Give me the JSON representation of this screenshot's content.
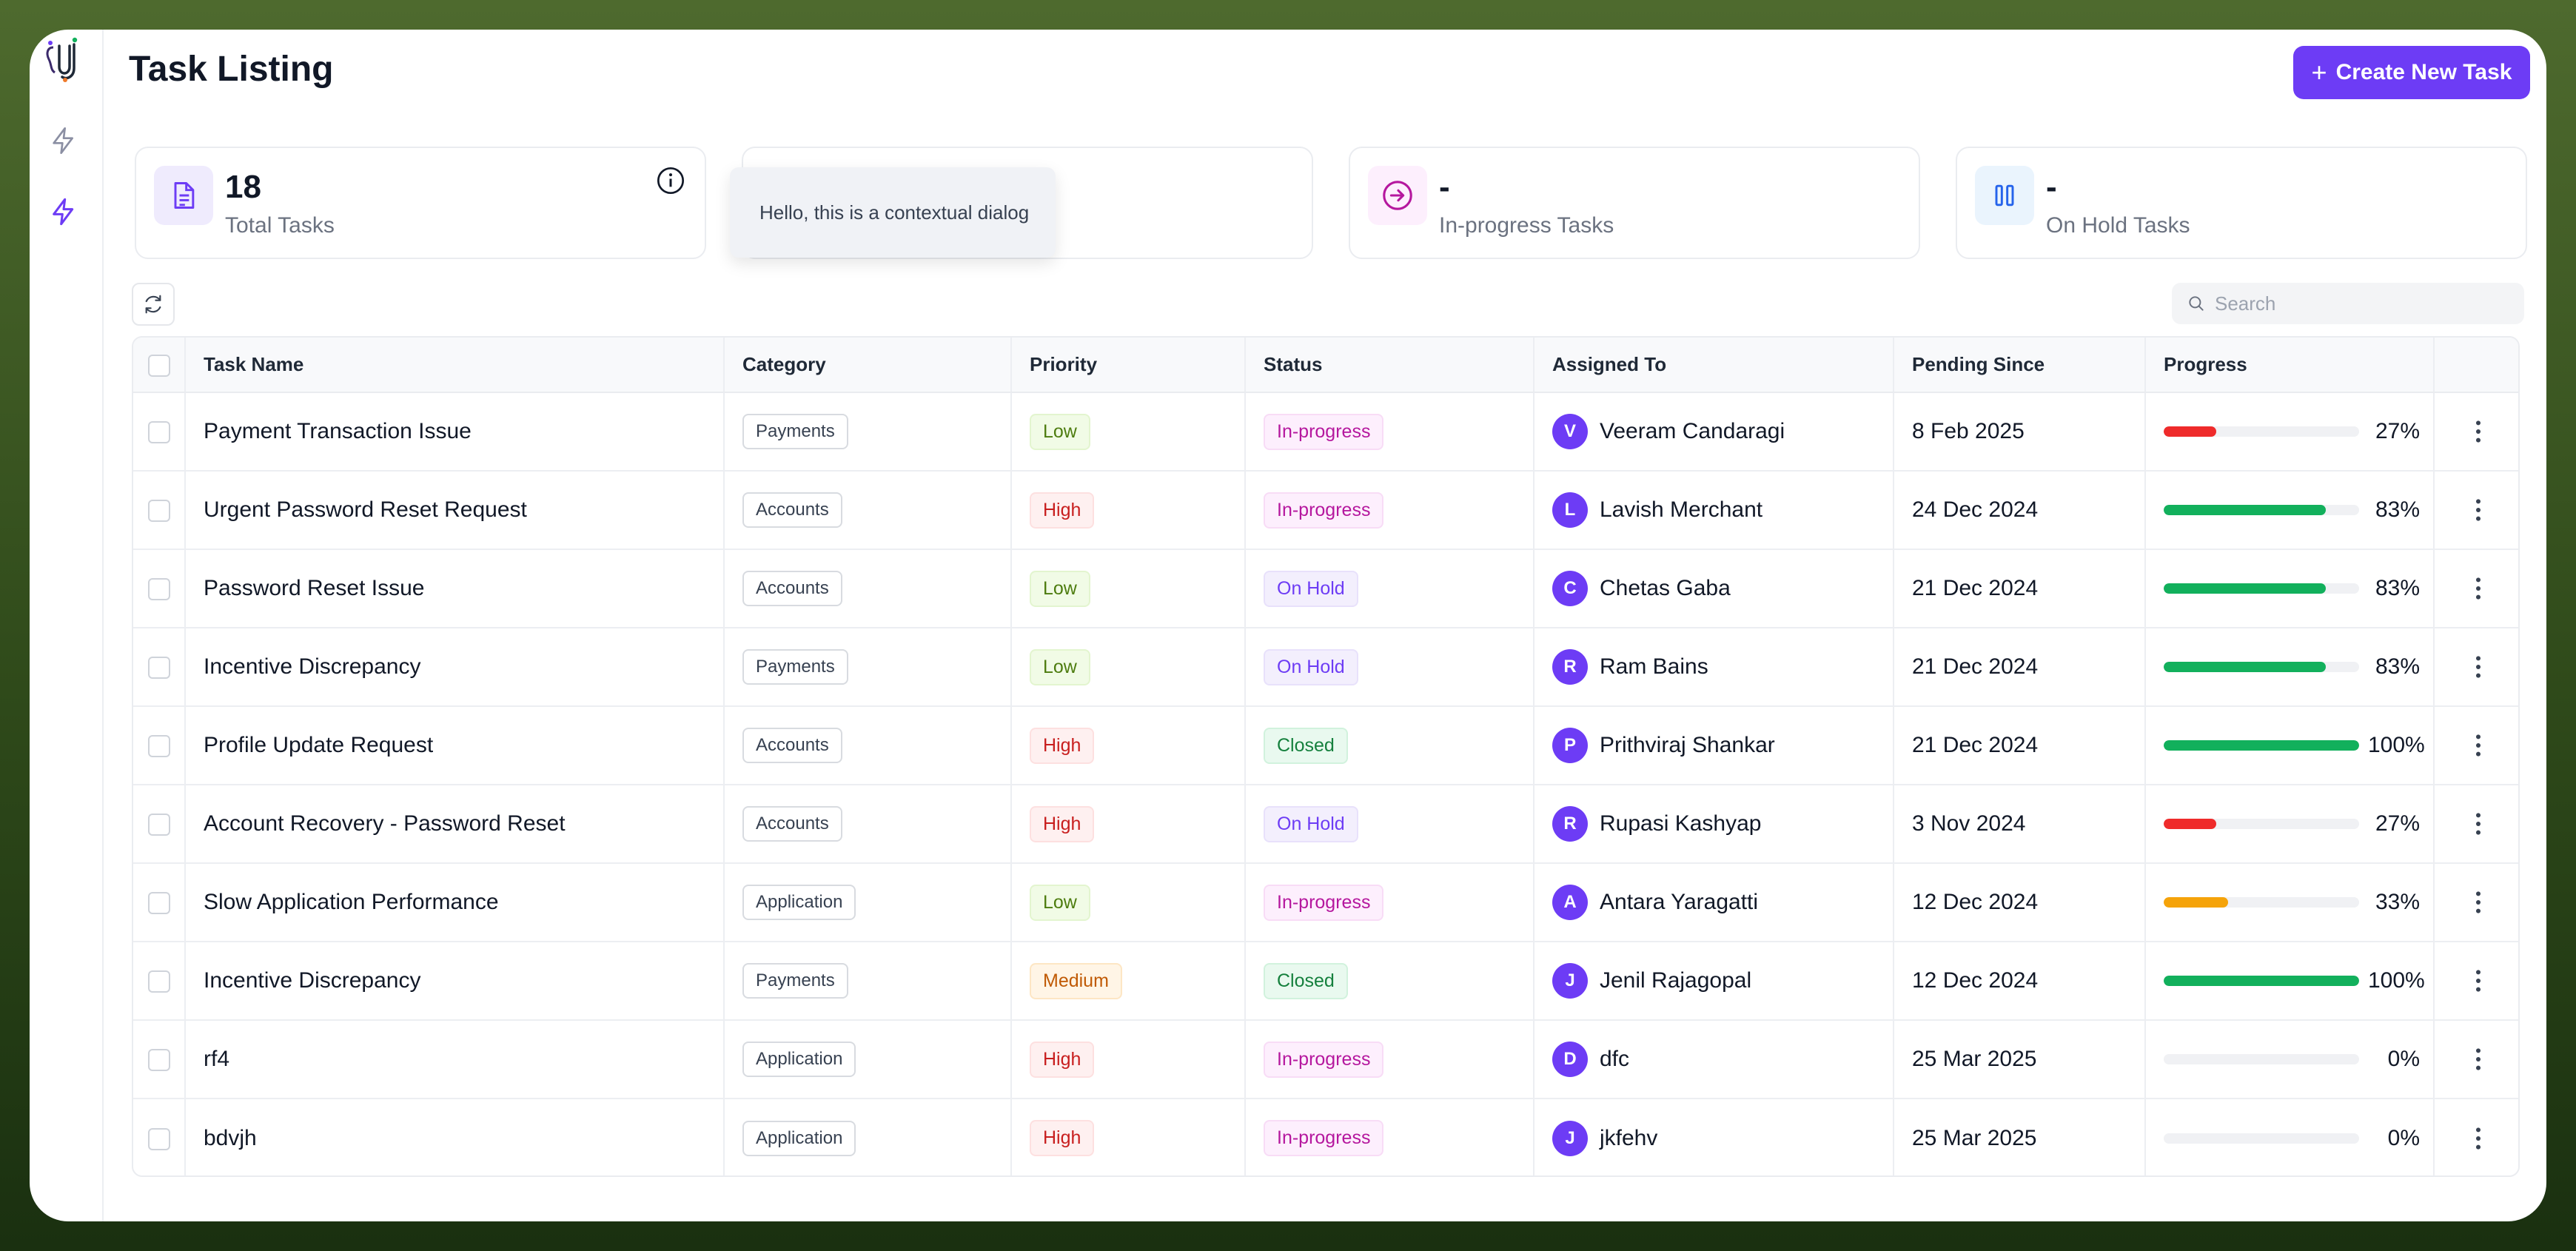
{
  "header": {
    "title": "Task Listing",
    "create_label": "Create New Task"
  },
  "sidebar": {
    "items": [
      {
        "icon": "lightning-icon",
        "active": false
      },
      {
        "icon": "lightning-icon",
        "active": true
      }
    ]
  },
  "stats": [
    {
      "value": "18",
      "label": "Total Tasks",
      "icon": "document-icon"
    },
    {
      "value": "",
      "label": "",
      "icon": ""
    },
    {
      "value": "-",
      "label": "In-progress Tasks",
      "icon": "arrow-right-circle-icon"
    },
    {
      "value": "-",
      "label": "On Hold Tasks",
      "icon": "pause-icon"
    }
  ],
  "tooltip": {
    "text": "Hello, this is a contextual dialog"
  },
  "search": {
    "placeholder": "Search",
    "value": ""
  },
  "table": {
    "columns": [
      "Task Name",
      "Category",
      "Priority",
      "Status",
      "Assigned To",
      "Pending Since",
      "Progress"
    ],
    "rows": [
      {
        "task": "Payment Transaction Issue",
        "category": "Payments",
        "priority": "Low",
        "status": "In-progress",
        "initial": "V",
        "assignee": "Veeram Candaragi",
        "since": "8 Feb 2025",
        "progress": 27,
        "progress_label": "27%"
      },
      {
        "task": "Urgent Password Reset Request",
        "category": "Accounts",
        "priority": "High",
        "status": "In-progress",
        "initial": "L",
        "assignee": "Lavish Merchant",
        "since": "24 Dec 2024",
        "progress": 83,
        "progress_label": "83%"
      },
      {
        "task": "Password Reset Issue",
        "category": "Accounts",
        "priority": "Low",
        "status": "On Hold",
        "initial": "C",
        "assignee": "Chetas Gaba",
        "since": "21 Dec 2024",
        "progress": 83,
        "progress_label": "83%"
      },
      {
        "task": "Incentive Discrepancy",
        "category": "Payments",
        "priority": "Low",
        "status": "On Hold",
        "initial": "R",
        "assignee": "Ram Bains",
        "since": "21 Dec 2024",
        "progress": 83,
        "progress_label": "83%"
      },
      {
        "task": "Profile Update Request",
        "category": "Accounts",
        "priority": "High",
        "status": "Closed",
        "initial": "P",
        "assignee": "Prithviraj Shankar",
        "since": "21 Dec 2024",
        "progress": 100,
        "progress_label": "100%"
      },
      {
        "task": "Account Recovery - Password Reset",
        "category": "Accounts",
        "priority": "High",
        "status": "On Hold",
        "initial": "R",
        "assignee": "Rupasi Kashyap",
        "since": "3 Nov 2024",
        "progress": 27,
        "progress_label": "27%"
      },
      {
        "task": "Slow Application Performance",
        "category": "Application",
        "priority": "Low",
        "status": "In-progress",
        "initial": "A",
        "assignee": "Antara Yaragatti",
        "since": "12 Dec 2024",
        "progress": 33,
        "progress_label": "33%"
      },
      {
        "task": "Incentive Discrepancy",
        "category": "Payments",
        "priority": "Medium",
        "status": "Closed",
        "initial": "J",
        "assignee": "Jenil Rajagopal",
        "since": "12 Dec 2024",
        "progress": 100,
        "progress_label": "100%"
      },
      {
        "task": "rf4",
        "category": "Application",
        "priority": "High",
        "status": "In-progress",
        "initial": "D",
        "assignee": "dfc",
        "since": "25 Mar 2025",
        "progress": 0,
        "progress_label": "0%"
      },
      {
        "task": "bdvjh",
        "category": "Application",
        "priority": "High",
        "status": "In-progress",
        "initial": "J",
        "assignee": "jkfehv",
        "since": "25 Mar 2025",
        "progress": 0,
        "progress_label": "0%"
      }
    ]
  },
  "colors": {
    "accent": "#6d3cf5",
    "progress_low": "#ef2b2b",
    "progress_mid": "#f5a30a",
    "progress_high": "#12b05c"
  }
}
